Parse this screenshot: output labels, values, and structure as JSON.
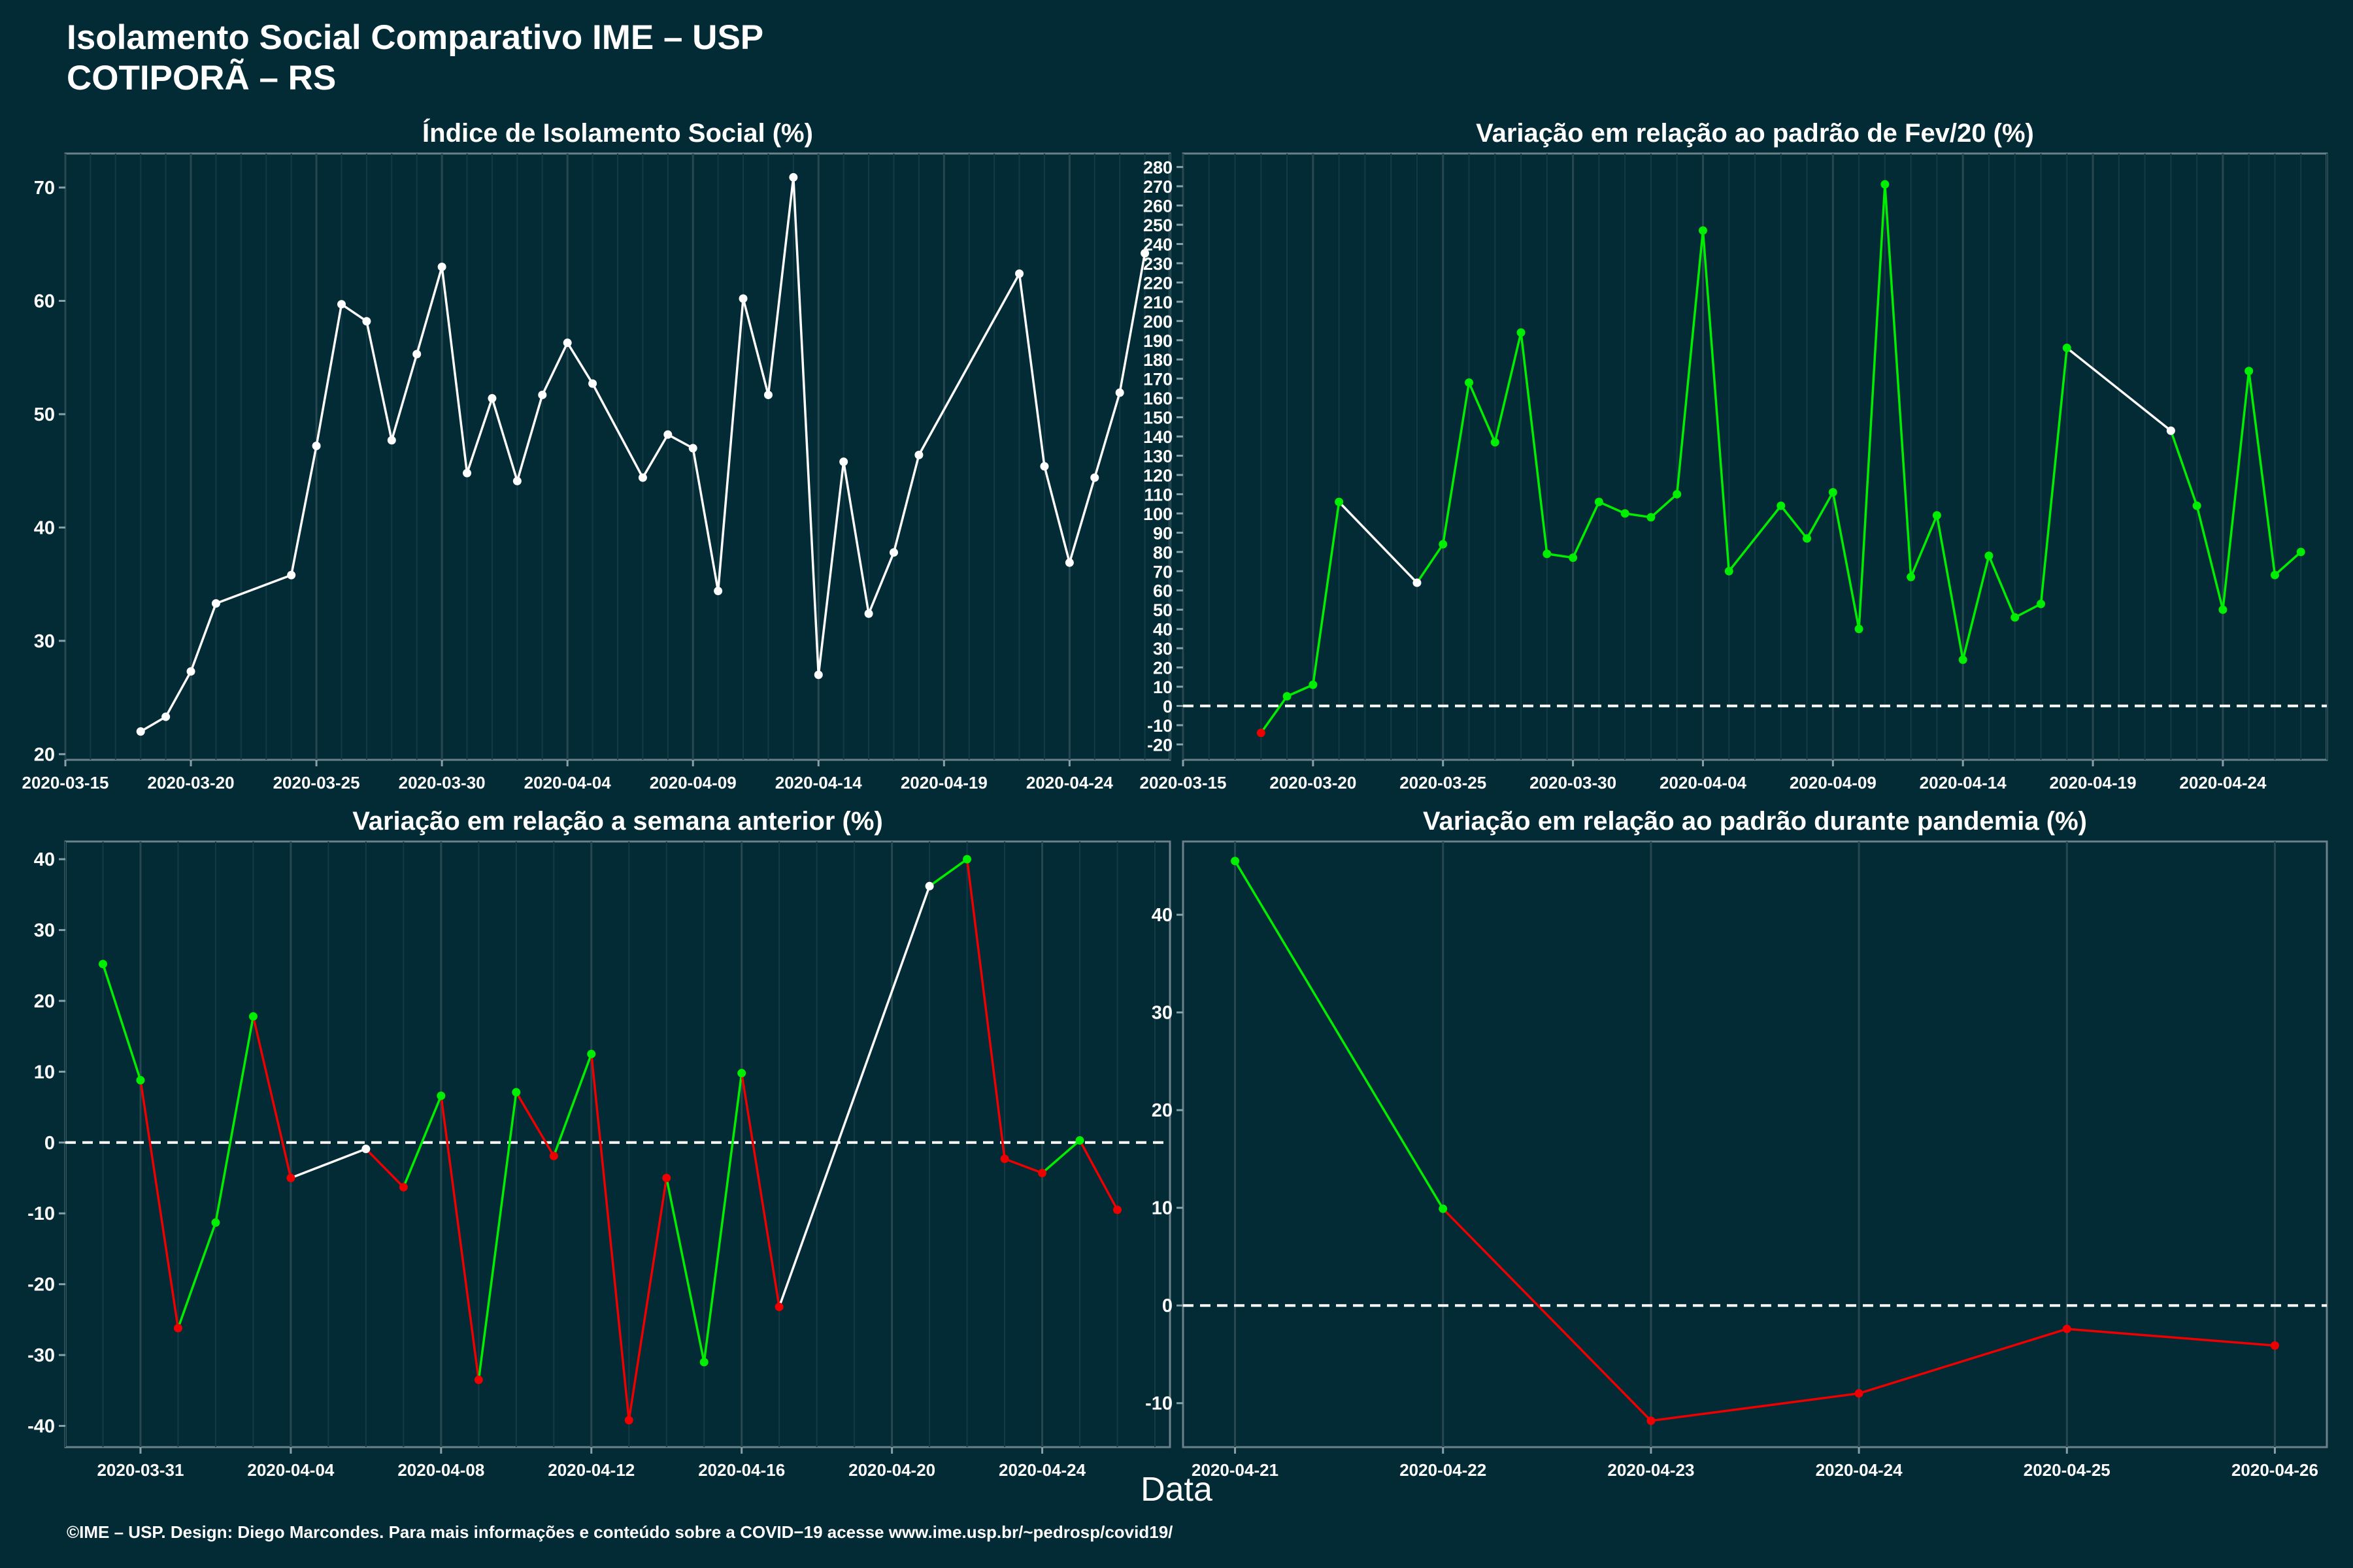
{
  "header": {
    "title": "Isolamento Social Comparativo IME – USP",
    "subtitle": "COTIPORÃ – RS"
  },
  "xlabel": "Data",
  "footer": "©IME – USP. Design: Diego Marcondes. Para mais informações e conteúdo sobre a COVID−19 acesse www.ime.usp.br/~pedrosp/covid19/",
  "colors": {
    "background": "#022b36",
    "up": "#00ee00",
    "down": "#ee0000",
    "neutral": "#ffffff"
  },
  "chart_data": [
    {
      "type": "line",
      "title": "Índice de Isolamento Social (%)",
      "x": [
        "2020-03-18",
        "2020-03-19",
        "2020-03-20",
        "2020-03-21",
        "2020-03-24",
        "2020-03-25",
        "2020-03-26",
        "2020-03-27",
        "2020-03-28",
        "2020-03-29",
        "2020-03-30",
        "2020-03-31",
        "2020-04-01",
        "2020-04-02",
        "2020-04-03",
        "2020-04-04",
        "2020-04-05",
        "2020-04-07",
        "2020-04-08",
        "2020-04-09",
        "2020-04-10",
        "2020-04-11",
        "2020-04-12",
        "2020-04-13",
        "2020-04-14",
        "2020-04-15",
        "2020-04-16",
        "2020-04-17",
        "2020-04-18",
        "2020-04-22",
        "2020-04-23",
        "2020-04-24",
        "2020-04-25",
        "2020-04-26",
        "2020-04-27"
      ],
      "y": [
        22.0,
        23.3,
        27.3,
        33.3,
        35.8,
        47.2,
        59.7,
        58.2,
        47.7,
        55.3,
        63.0,
        44.8,
        51.4,
        44.1,
        51.7,
        56.3,
        52.7,
        44.4,
        48.2,
        47.0,
        34.4,
        60.2,
        51.7,
        70.9,
        27.0,
        45.8,
        32.4,
        37.8,
        46.4,
        62.4,
        45.4,
        36.9,
        44.4,
        51.9,
        64.2
      ],
      "colors": [
        "n",
        "n",
        "n",
        "n",
        "n",
        "n",
        "n",
        "n",
        "n",
        "n",
        "n",
        "n",
        "n",
        "n",
        "n",
        "n",
        "n",
        "n",
        "n",
        "n",
        "n",
        "n",
        "n",
        "n",
        "n",
        "n",
        "n",
        "n",
        "n",
        "n",
        "n",
        "n",
        "n",
        "n",
        "n"
      ],
      "xticks": [
        "2020-03-15",
        "2020-03-20",
        "2020-03-25",
        "2020-03-30",
        "2020-04-04",
        "2020-04-09",
        "2020-04-14",
        "2020-04-19",
        "2020-04-24"
      ],
      "yticks": [
        20,
        30,
        40,
        50,
        60,
        70
      ],
      "xlim": [
        "2020-03-15",
        "2020-04-28"
      ],
      "ylim": [
        19.5,
        73
      ],
      "baseline": null
    },
    {
      "type": "line",
      "title": "Variação em relação ao padrão de Fev/20 (%)",
      "x": [
        "2020-03-18",
        "2020-03-19",
        "2020-03-20",
        "2020-03-21",
        "2020-03-24",
        "2020-03-25",
        "2020-03-26",
        "2020-03-27",
        "2020-03-28",
        "2020-03-29",
        "2020-03-30",
        "2020-03-31",
        "2020-04-01",
        "2020-04-02",
        "2020-04-03",
        "2020-04-04",
        "2020-04-05",
        "2020-04-07",
        "2020-04-08",
        "2020-04-09",
        "2020-04-10",
        "2020-04-11",
        "2020-04-12",
        "2020-04-13",
        "2020-04-14",
        "2020-04-15",
        "2020-04-16",
        "2020-04-17",
        "2020-04-18",
        "2020-04-22",
        "2020-04-23",
        "2020-04-24",
        "2020-04-25",
        "2020-04-26",
        "2020-04-27"
      ],
      "y": [
        -14,
        5,
        11,
        106,
        64,
        84,
        168,
        137,
        194,
        79,
        77,
        106,
        100,
        98,
        110,
        247,
        70,
        104,
        87,
        111,
        40,
        271,
        67,
        99,
        24,
        78,
        46,
        53,
        186,
        143,
        104,
        50,
        174,
        68,
        80
      ],
      "colors": [
        "r",
        "g",
        "g",
        "g",
        "n",
        "g",
        "g",
        "g",
        "g",
        "g",
        "g",
        "g",
        "g",
        "g",
        "g",
        "g",
        "g",
        "g",
        "g",
        "g",
        "g",
        "g",
        "g",
        "g",
        "g",
        "g",
        "g",
        "g",
        "g",
        "n",
        "g",
        "g",
        "g",
        "g",
        "g"
      ],
      "xticks": [
        "2020-03-15",
        "2020-03-20",
        "2020-03-25",
        "2020-03-30",
        "2020-04-04",
        "2020-04-09",
        "2020-04-14",
        "2020-04-19",
        "2020-04-24"
      ],
      "yticks": [
        -20,
        -10,
        0,
        10,
        20,
        30,
        40,
        50,
        60,
        70,
        80,
        90,
        100,
        110,
        120,
        130,
        140,
        150,
        160,
        170,
        180,
        190,
        200,
        210,
        220,
        230,
        240,
        250,
        260,
        270,
        280
      ],
      "xlim": [
        "2020-03-15",
        "2020-04-28"
      ],
      "ylim": [
        -28,
        287
      ],
      "baseline": 0
    },
    {
      "type": "line",
      "title": "Variação em relação a semana anterior (%)",
      "x": [
        "2020-03-30",
        "2020-03-31",
        "2020-04-01",
        "2020-04-02",
        "2020-04-03",
        "2020-04-04",
        "2020-04-06",
        "2020-04-07",
        "2020-04-08",
        "2020-04-09",
        "2020-04-10",
        "2020-04-11",
        "2020-04-12",
        "2020-04-13",
        "2020-04-14",
        "2020-04-15",
        "2020-04-16",
        "2020-04-17",
        "2020-04-21",
        "2020-04-22",
        "2020-04-23",
        "2020-04-24",
        "2020-04-25",
        "2020-04-26"
      ],
      "y": [
        25.2,
        8.8,
        -26.2,
        -11.3,
        17.8,
        -5.0,
        -0.9,
        -6.3,
        6.6,
        -33.5,
        7.1,
        -1.9,
        12.5,
        -39.2,
        -5.0,
        -31.0,
        9.8,
        -23.2,
        36.2,
        40.0,
        -2.3,
        -4.3,
        0.3,
        -9.5
      ],
      "colors": [
        "g",
        "g",
        "r",
        "g",
        "g",
        "r",
        "n",
        "r",
        "g",
        "r",
        "g",
        "r",
        "g",
        "r",
        "r",
        "g",
        "g",
        "r",
        "n",
        "g",
        "r",
        "r",
        "g",
        "r"
      ],
      "xticks": [
        "2020-03-31",
        "2020-04-04",
        "2020-04-08",
        "2020-04-12",
        "2020-04-16",
        "2020-04-20",
        "2020-04-24"
      ],
      "yticks": [
        -40,
        -30,
        -20,
        -10,
        0,
        10,
        20,
        30,
        40
      ],
      "xlim": [
        "2020-03-29",
        "2020-04-27.4"
      ],
      "ylim": [
        -43,
        42.5
      ],
      "baseline": 0
    },
    {
      "type": "line",
      "title": "Variação em relação ao padrão durante pandemia (%)",
      "x": [
        "2020-04-21",
        "2020-04-22",
        "2020-04-23",
        "2020-04-24",
        "2020-04-25",
        "2020-04-26"
      ],
      "y": [
        45.5,
        9.9,
        -11.8,
        -9.0,
        -2.4,
        -4.1
      ],
      "colors": [
        "g",
        "g",
        "r",
        "r",
        "r",
        "r"
      ],
      "xticks": [
        "2020-04-21",
        "2020-04-22",
        "2020-04-23",
        "2020-04-24",
        "2020-04-25",
        "2020-04-26"
      ],
      "yticks": [
        -10,
        0,
        10,
        20,
        30,
        40
      ],
      "xlim": [
        "2020-04-20.75",
        "2020-04-26.25"
      ],
      "ylim": [
        -14.5,
        47.5
      ],
      "baseline": 0
    }
  ]
}
